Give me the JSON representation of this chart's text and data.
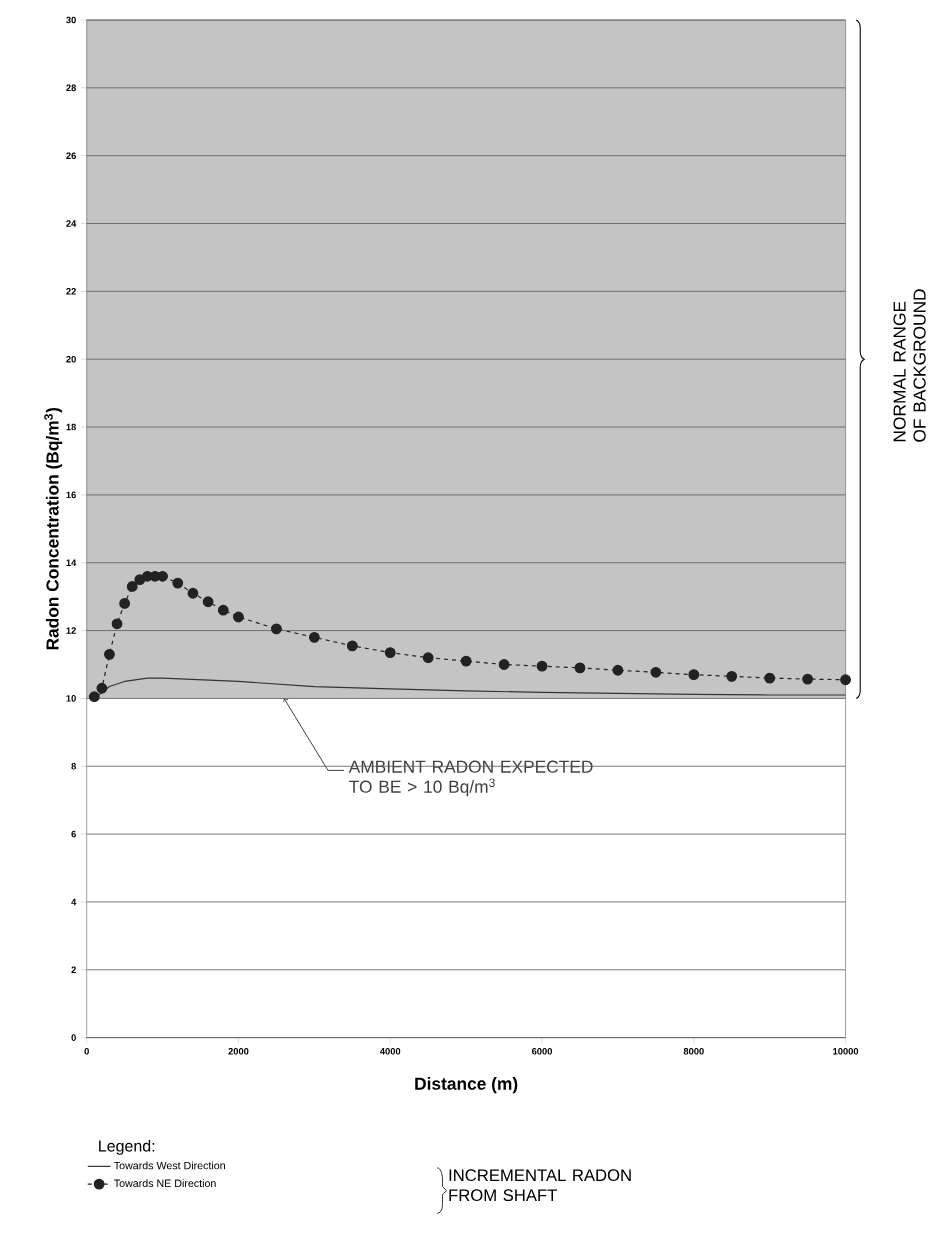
{
  "chart_data": {
    "type": "line",
    "xlabel": "Distance (m)",
    "ylabel": "**Radon Concentration  (Bq/m$^{3}$)**",
    "x": [
      100,
      200,
      300,
      400,
      500,
      600,
      700,
      800,
      900,
      1000,
      1200,
      1400,
      1600,
      1800,
      2000,
      2500,
      3000,
      3500,
      4000,
      4500,
      5000,
      5500,
      6000,
      6500,
      7000,
      7500,
      8000,
      8500,
      9000,
      9500,
      10000
    ],
    "series": [
      {
        "name": "Towards West Direction",
        "color": "#333333",
        "line_style": "solid",
        "marker": "none",
        "x": [
          100,
          300,
          500,
          800,
          1000,
          1500,
          2000,
          3000,
          4000,
          5000,
          6000,
          7000,
          8000,
          9000,
          10000
        ],
        "values": [
          10.0,
          10.35,
          10.5,
          10.6,
          10.6,
          10.55,
          10.5,
          10.35,
          10.28,
          10.22,
          10.18,
          10.15,
          10.12,
          10.1,
          10.1
        ]
      },
      {
        "name": "Towards NE Direction",
        "color": "#222222",
        "line_style": "dashed",
        "marker": "circle",
        "values": [
          10.05,
          10.3,
          11.3,
          12.2,
          12.8,
          13.3,
          13.5,
          13.6,
          13.6,
          13.6,
          13.4,
          13.1,
          12.85,
          12.6,
          12.4,
          12.05,
          11.8,
          11.55,
          11.35,
          11.2,
          11.1,
          11.0,
          10.95,
          10.9,
          10.83,
          10.77,
          10.7,
          10.65,
          10.6,
          10.57,
          10.55
        ]
      }
    ],
    "xlim": [
      0,
      10000
    ],
    "xticks": [
      0,
      2000,
      4000,
      6000,
      8000,
      10000
    ],
    "ylim": [
      0,
      30
    ],
    "yticks": [
      0,
      2,
      4,
      6,
      8,
      10,
      12,
      14,
      16,
      18,
      20,
      22,
      24,
      26,
      28,
      30
    ],
    "grid": "y",
    "bands": [
      {
        "axis": "y",
        "from": 10,
        "to": 30,
        "label": "NORMAL RANGE OF BACKGROUND",
        "color": "#c4c4c4"
      }
    ],
    "legend": "bottom",
    "legend_title": "Legend:",
    "annotations": [
      {
        "text": "AMBIENT RADON EXPECTED TO BE > 10 Bq/m$^{3}$",
        "x": 2600,
        "y": 10
      },
      "INCREMENTAL RADON FROM SHAFT"
    ]
  }
}
